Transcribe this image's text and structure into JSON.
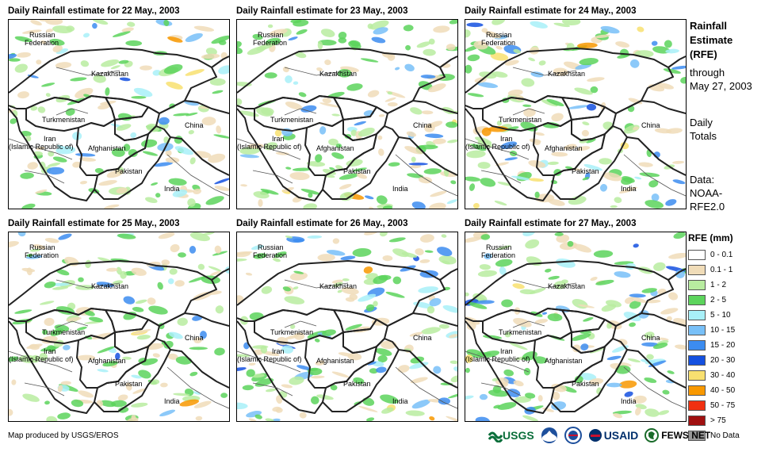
{
  "panels": [
    {
      "title": "Daily Rainfall estimate for 22 May., 2003"
    },
    {
      "title": "Daily Rainfall estimate for 23 May., 2003"
    },
    {
      "title": "Daily Rainfall estimate for 24 May., 2003"
    },
    {
      "title": "Daily Rainfall estimate for 25 May., 2003"
    },
    {
      "title": "Daily Rainfall estimate for 26 May., 2003"
    },
    {
      "title": "Daily Rainfall estimate for 27 May., 2003"
    }
  ],
  "map_labels": {
    "russia_1": "Russian",
    "russia_2": "Federation",
    "kazakhstan": "Kazakhstan",
    "turkmenistan": "Turkmenistan",
    "iran_1": "Iran",
    "iran_2": "(Islamic Republic of)",
    "afghanistan": "Afghanistan",
    "pakistan": "Pakistan",
    "china": "China",
    "india": "India"
  },
  "sidebar": {
    "title_1": "Rainfall",
    "title_2": "Estimate",
    "title_3": "(RFE)",
    "through": "through",
    "date": "May 27, 2003",
    "daily": "Daily",
    "totals": "Totals",
    "data_1": "Data:",
    "data_2": "NOAA-",
    "data_3": "RFE2.0"
  },
  "legend": {
    "title": "RFE (mm)",
    "items": [
      {
        "label": "0 - 0.1",
        "color": "#ffffff"
      },
      {
        "label": "0.1 - 1",
        "color": "#f0dcb8"
      },
      {
        "label": "1 - 2",
        "color": "#b8eca0"
      },
      {
        "label": "2 - 5",
        "color": "#5cd45c"
      },
      {
        "label": "5 - 10",
        "color": "#a8f0f8"
      },
      {
        "label": "10 - 15",
        "color": "#78c0f8"
      },
      {
        "label": "15 - 20",
        "color": "#3c8cf0"
      },
      {
        "label": "20 - 30",
        "color": "#1450e0"
      },
      {
        "label": "30 - 40",
        "color": "#f8e070"
      },
      {
        "label": "40 - 50",
        "color": "#f89800"
      },
      {
        "label": "50 - 75",
        "color": "#f03010"
      },
      {
        "label": "> 75",
        "color": "#a01010"
      },
      {
        "label": "No Data",
        "color": "#999999"
      }
    ]
  },
  "footer": {
    "credit": "Map produced by USGS/EROS"
  },
  "logos": {
    "usgs": "USGS",
    "usaid": "USAID",
    "fews": "FEWS NET"
  }
}
